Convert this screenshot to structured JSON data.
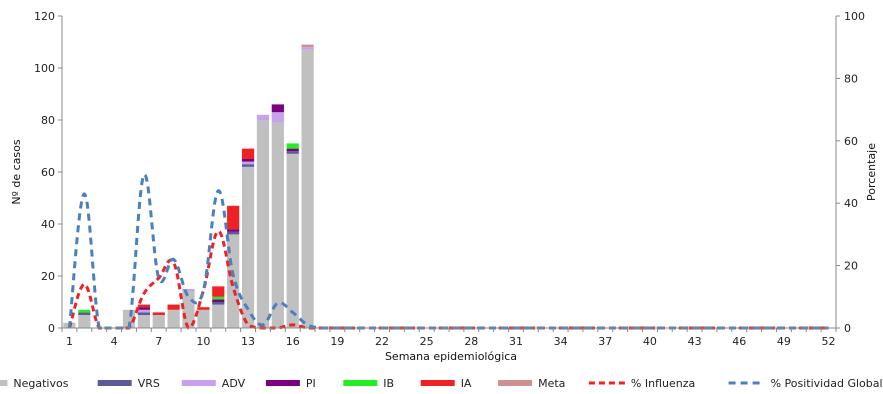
{
  "chart_data": {
    "type": "bar",
    "stacked": true,
    "xlabel": "Semana epidemiológica",
    "ylabel": "Nº de casos",
    "y2label": "Porcentaje",
    "ylim": [
      0,
      120
    ],
    "y2lim": [
      0,
      100
    ],
    "yticks": [
      0,
      20,
      40,
      60,
      80,
      100,
      120
    ],
    "y2ticks": [
      0,
      20,
      40,
      60,
      80,
      100
    ],
    "x": [
      1,
      2,
      3,
      4,
      5,
      6,
      7,
      8,
      9,
      10,
      11,
      12,
      13,
      14,
      15,
      16,
      17,
      18,
      19,
      20,
      21,
      22,
      23,
      24,
      25,
      26,
      27,
      28,
      29,
      30,
      31,
      32,
      33,
      34,
      35,
      36,
      37,
      38,
      39,
      40,
      41,
      42,
      43,
      44,
      45,
      46,
      47,
      48,
      49,
      50,
      51,
      52
    ],
    "xtick_labels": [
      "1",
      "4",
      "7",
      "10",
      "13",
      "16",
      "19",
      "22",
      "25",
      "28",
      "31",
      "34",
      "37",
      "40",
      "43",
      "46",
      "49",
      "52"
    ],
    "legend_position": "bottom",
    "series": [
      {
        "name": "Negativos",
        "kind": "bar",
        "color": "#c0c0c0",
        "values": [
          2,
          5,
          0,
          0,
          7,
          5,
          5,
          7,
          14,
          7,
          9,
          36,
          62,
          80,
          79,
          67,
          107,
          0,
          0,
          0,
          0,
          0,
          0,
          0,
          0,
          0,
          0,
          0,
          0,
          0,
          0,
          0,
          0,
          0,
          0,
          0,
          0,
          0,
          0,
          0,
          0,
          0,
          0,
          0,
          0,
          0,
          0,
          0,
          0,
          0,
          0,
          0
        ]
      },
      {
        "name": "VRS",
        "kind": "bar",
        "color": "#5b5b9a",
        "values": [
          0,
          1,
          0,
          0,
          0,
          1,
          0,
          0,
          0,
          0,
          1,
          1,
          1,
          0,
          0,
          1,
          0,
          0,
          0,
          0,
          0,
          0,
          0,
          0,
          0,
          0,
          0,
          0,
          0,
          0,
          0,
          0,
          0,
          0,
          0,
          0,
          0,
          0,
          0,
          0,
          0,
          0,
          0,
          0,
          0,
          0,
          0,
          0,
          0,
          0,
          0,
          0
        ]
      },
      {
        "name": "ADV",
        "kind": "bar",
        "color": "#c9a0f0",
        "values": [
          0,
          0,
          0,
          0,
          0,
          1,
          0,
          0,
          1,
          0,
          0,
          0,
          1,
          2,
          4,
          0,
          1,
          0,
          0,
          0,
          0,
          0,
          0,
          0,
          0,
          0,
          0,
          0,
          0,
          0,
          0,
          0,
          0,
          0,
          0,
          0,
          0,
          0,
          0,
          0,
          0,
          0,
          0,
          0,
          0,
          0,
          0,
          0,
          0,
          0,
          0,
          0
        ]
      },
      {
        "name": "PI",
        "kind": "bar",
        "color": "#7a0080",
        "values": [
          0,
          0,
          0,
          0,
          0,
          1,
          0,
          0,
          0,
          0,
          1,
          1,
          1,
          0,
          3,
          1,
          0,
          0,
          0,
          0,
          0,
          0,
          0,
          0,
          0,
          0,
          0,
          0,
          0,
          0,
          0,
          0,
          0,
          0,
          0,
          0,
          0,
          0,
          0,
          0,
          0,
          0,
          0,
          0,
          0,
          0,
          0,
          0,
          0,
          0,
          0,
          0
        ]
      },
      {
        "name": "IB",
        "kind": "bar",
        "color": "#22ee22",
        "values": [
          0,
          1,
          0,
          0,
          0,
          0,
          0,
          0,
          0,
          0,
          1,
          0,
          0,
          0,
          0,
          2,
          0,
          0,
          0,
          0,
          0,
          0,
          0,
          0,
          0,
          0,
          0,
          0,
          0,
          0,
          0,
          0,
          0,
          0,
          0,
          0,
          0,
          0,
          0,
          0,
          0,
          0,
          0,
          0,
          0,
          0,
          0,
          0,
          0,
          0,
          0,
          0
        ]
      },
      {
        "name": "IA",
        "kind": "bar",
        "color": "#ee2222",
        "values": [
          0,
          0,
          0,
          0,
          0,
          1,
          1,
          2,
          0,
          1,
          4,
          9,
          4,
          0,
          0,
          0,
          0,
          0,
          0,
          0,
          0,
          0,
          0,
          0,
          0,
          0,
          0,
          0,
          0,
          0,
          0,
          0,
          0,
          0,
          0,
          0,
          0,
          0,
          0,
          0,
          0,
          0,
          0,
          0,
          0,
          0,
          0,
          0,
          0,
          0,
          0,
          0
        ]
      },
      {
        "name": "Meta",
        "kind": "bar",
        "color": "#d09090",
        "values": [
          0,
          0,
          0,
          0,
          0,
          0,
          0,
          0,
          0,
          0,
          0,
          0,
          0,
          0,
          0,
          0,
          1,
          0,
          0,
          0,
          0,
          0,
          0,
          0,
          0,
          0,
          0,
          0,
          0,
          0,
          0,
          0,
          0,
          0,
          0,
          0,
          0,
          0,
          0,
          0,
          0,
          0,
          0,
          0,
          0,
          0,
          0,
          0,
          0,
          0,
          0,
          0
        ]
      },
      {
        "name": "% Influenza",
        "kind": "line",
        "axis": "y2",
        "color": "#ee2222",
        "dash": "6,4",
        "values": [
          0,
          14,
          0,
          0,
          0,
          11,
          16,
          21,
          0,
          12,
          31,
          13,
          1,
          0,
          0,
          1,
          0,
          0,
          0,
          0,
          0,
          0,
          0,
          0,
          0,
          0,
          0,
          0,
          0,
          0,
          0,
          0,
          0,
          0,
          0,
          0,
          0,
          0,
          0,
          0,
          0,
          0,
          0,
          0,
          0,
          0,
          0,
          0,
          0,
          0,
          0,
          0
        ]
      },
      {
        "name": "% Positividad Global",
        "kind": "line",
        "axis": "y2",
        "color": "#4a7fc0",
        "dash": "7,5",
        "values": [
          0,
          43,
          0,
          0,
          0,
          49,
          16,
          22,
          10,
          12,
          44,
          17,
          6,
          1,
          8,
          5,
          1,
          0,
          0,
          0,
          0,
          0,
          0,
          0,
          0,
          0,
          0,
          0,
          0,
          0,
          0,
          0,
          0,
          0,
          0,
          0,
          0,
          0,
          0,
          0,
          0,
          0,
          0,
          0,
          0,
          0,
          0,
          0,
          0,
          0,
          0,
          0
        ]
      }
    ]
  }
}
